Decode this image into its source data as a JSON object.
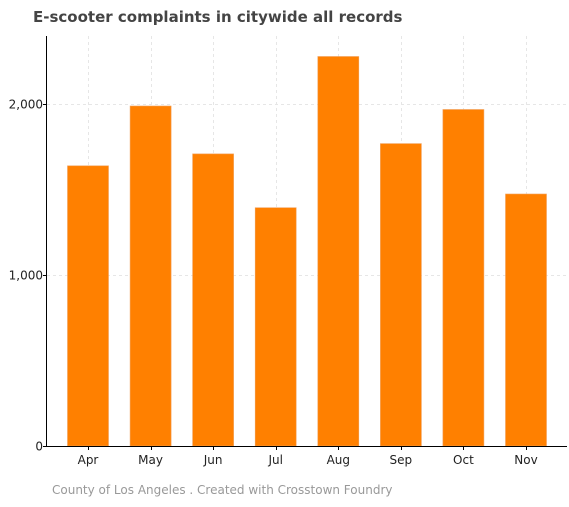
{
  "chart_data": {
    "type": "bar",
    "title": "E-scooter complaints in citywide all records",
    "categories": [
      "Apr",
      "May",
      "Jun",
      "Jul",
      "Aug",
      "Sep",
      "Oct",
      "Nov"
    ],
    "values": [
      1640,
      1990,
      1710,
      1395,
      2280,
      1770,
      1970,
      1475
    ],
    "xlabel": "",
    "ylabel": "",
    "ylim": [
      0,
      2400
    ],
    "yticks": [
      0,
      1000,
      2000
    ],
    "ytick_labels": [
      "0",
      "1,000",
      "2,000"
    ],
    "grid": true,
    "bar_color": "#ff8000",
    "source": "County of Los Angeles . Created with Crosstown Foundry"
  }
}
